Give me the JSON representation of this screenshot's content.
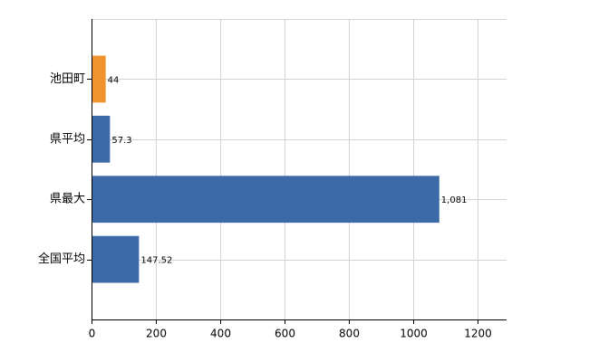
{
  "chart_data": {
    "type": "hbar",
    "categories": [
      "池田町",
      "県平均",
      "県最大",
      "全国平均"
    ],
    "values": [
      44,
      57.3,
      1081,
      147.52
    ],
    "value_labels": [
      "44",
      "57.3",
      "1,081",
      "147.52"
    ],
    "colors": [
      "#f0922e",
      "#3b6aa7",
      "#3b6aa7",
      "#3b6aa7"
    ],
    "xlim": [
      0,
      1290
    ],
    "xticks": [
      0,
      200,
      400,
      600,
      800,
      1000,
      1200
    ],
    "grid": true
  }
}
